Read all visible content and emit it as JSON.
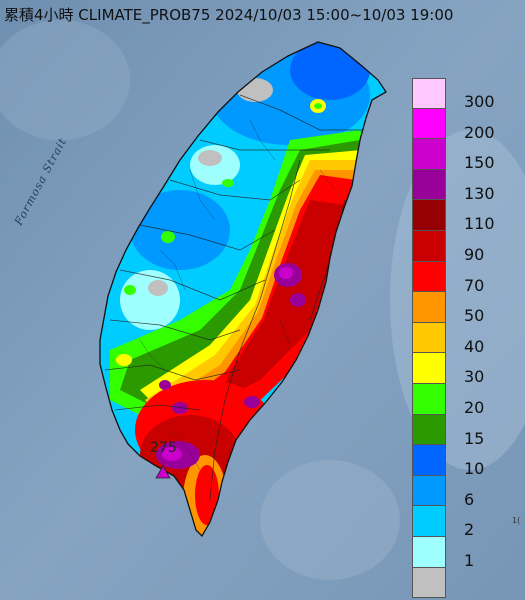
{
  "title": "累積4小時 CLIMATE_PROB75 2024/10/03 15:00~10/03 19:00",
  "sea_label": "Formosa Strait",
  "peak_label": "275",
  "edge_fragment": "1(",
  "legend": [
    {
      "label": "300",
      "color": "#ffc8ff"
    },
    {
      "label": "200",
      "color": "#ff00ff"
    },
    {
      "label": "150",
      "color": "#cc00cc"
    },
    {
      "label": "130",
      "color": "#990099"
    },
    {
      "label": "110",
      "color": "#960000"
    },
    {
      "label": "90",
      "color": "#c80000"
    },
    {
      "label": "70",
      "color": "#ff0000"
    },
    {
      "label": "50",
      "color": "#ff9600"
    },
    {
      "label": "40",
      "color": "#ffc800"
    },
    {
      "label": "30",
      "color": "#ffff00"
    },
    {
      "label": "20",
      "color": "#33ff00"
    },
    {
      "label": "15",
      "color": "#2b9900"
    },
    {
      "label": "10",
      "color": "#0066ff"
    },
    {
      "label": "6",
      "color": "#0099ff"
    },
    {
      "label": "2",
      "color": "#00ccff"
    },
    {
      "label": "1",
      "color": "#9fffff"
    },
    {
      "label": "",
      "color": "#c0c0c0"
    }
  ]
}
